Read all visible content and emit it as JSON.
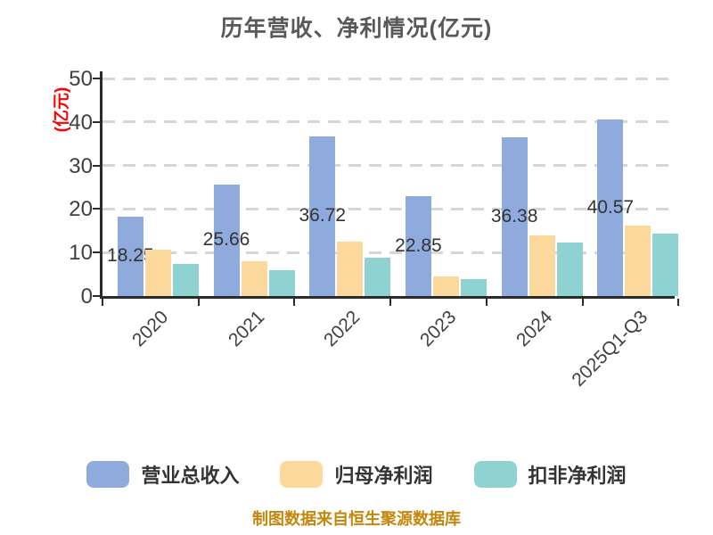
{
  "title": "历年营收、净利情况(亿元)",
  "y_axis": {
    "unit_label": "(亿元)",
    "unit_label_color": "#ff0000",
    "tick_labels": [
      "0",
      "10",
      "20",
      "30",
      "40",
      "50"
    ],
    "tick_values": [
      0,
      10,
      20,
      30,
      40,
      50
    ]
  },
  "legend": [
    {
      "label": "营业总收入",
      "color": "#8FAADC"
    },
    {
      "label": "归母净利润",
      "color": "#FBD89B"
    },
    {
      "label": "扣非净利润",
      "color": "#8ED3D1"
    }
  ],
  "footer": "制图数据来自恒生聚源数据库",
  "chart_data": {
    "type": "bar",
    "title": "历年营收、净利情况(亿元)",
    "ylabel": "(亿元)",
    "xlabel": "",
    "ylim": [
      0,
      50
    ],
    "grid": "horizontal dashed",
    "legend_position": "bottom",
    "categories": [
      "2020",
      "2021",
      "2022",
      "2023",
      "2024",
      "2025Q1-Q3"
    ],
    "series": [
      {
        "name": "营业总收入",
        "color": "#8FAADC",
        "values": [
          18.25,
          25.66,
          36.72,
          22.85,
          36.38,
          40.57
        ],
        "labels": [
          "18.25",
          "25.66",
          "36.72",
          "22.85",
          "36.38",
          "40.57"
        ]
      },
      {
        "name": "归母净利润",
        "color": "#FBD89B",
        "values": [
          10.7,
          8.0,
          12.5,
          4.5,
          13.9,
          16.2
        ],
        "labels": []
      },
      {
        "name": "扣非净利润",
        "color": "#8ED3D1",
        "values": [
          7.4,
          5.9,
          8.8,
          3.9,
          12.3,
          14.3
        ],
        "labels": []
      }
    ]
  }
}
